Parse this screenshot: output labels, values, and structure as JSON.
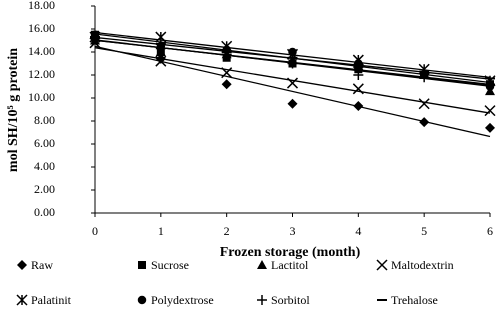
{
  "chart_data": {
    "type": "scatter",
    "x_label": "Frozen storage (month)",
    "y_label": "mol SH/10⁵ g protein",
    "x": [
      0,
      1,
      2,
      3,
      4,
      5,
      6
    ],
    "xlim": [
      0,
      6
    ],
    "xticks": [
      0,
      1,
      2,
      3,
      4,
      5,
      6
    ],
    "ylim": [
      0,
      18
    ],
    "yticks": [
      {
        "value": 0,
        "label": "0.00"
      },
      {
        "value": 2,
        "label": "2.00"
      },
      {
        "value": 4,
        "label": "4.00"
      },
      {
        "value": 6,
        "label": "6.00"
      },
      {
        "value": 8,
        "label": "8.00"
      },
      {
        "value": 10,
        "label": "10.00"
      },
      {
        "value": 12,
        "label": "12.00"
      },
      {
        "value": 14,
        "label": "14.00"
      },
      {
        "value": 16,
        "label": "16.00"
      },
      {
        "value": 18,
        "label": "18.00"
      }
    ],
    "grid": false,
    "trendline": true,
    "series": [
      {
        "name": "Raw",
        "color": "#000000",
        "marker": "diamond",
        "values": [
          15.3,
          13.4,
          11.2,
          9.5,
          9.3,
          7.9,
          7.4
        ]
      },
      {
        "name": "Sucrose",
        "color": "#000000",
        "marker": "square",
        "values": [
          15.5,
          14.0,
          13.5,
          13.0,
          12.5,
          12.0,
          11.2
        ]
      },
      {
        "name": "Lactitol",
        "color": "#000000",
        "marker": "triangle",
        "values": [
          15.0,
          14.0,
          13.8,
          13.3,
          12.8,
          12.0,
          10.6
        ]
      },
      {
        "name": "Maltodextrin",
        "color": "#000000",
        "marker": "x",
        "values": [
          14.8,
          13.2,
          12.2,
          11.3,
          10.8,
          9.5,
          8.9
        ]
      },
      {
        "name": "Palatinit",
        "color": "#000000",
        "marker": "asterisk",
        "values": [
          15.3,
          15.3,
          14.5,
          13.8,
          13.3,
          12.5,
          11.5
        ]
      },
      {
        "name": "Polydextrose",
        "color": "#000000",
        "marker": "circle",
        "values": [
          15.5,
          14.5,
          14.2,
          14.0,
          13.0,
          12.0,
          11.0
        ]
      },
      {
        "name": "Sorbitol",
        "color": "#000000",
        "marker": "plus",
        "values": [
          15.2,
          14.3,
          13.8,
          13.0,
          12.0,
          11.8,
          11.2
        ]
      },
      {
        "name": "Trehalose",
        "color": "#000000",
        "marker": "dash",
        "values": [
          15.3,
          14.7,
          14.0,
          13.5,
          12.7,
          12.3,
          11.7
        ]
      }
    ]
  }
}
